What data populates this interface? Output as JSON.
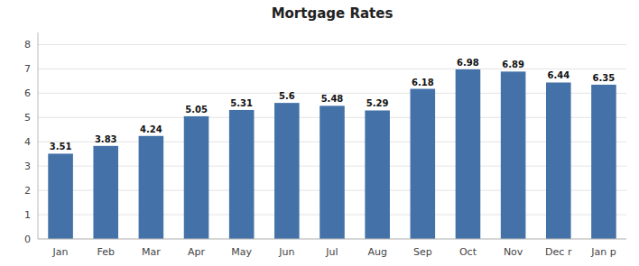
{
  "chart_data": {
    "type": "bar",
    "title": "Mortgage Rates",
    "categories": [
      "Jan",
      "Feb",
      "Mar",
      "Apr",
      "May",
      "Jun",
      "Jul",
      "Aug",
      "Sep",
      "Oct",
      "Nov",
      "Dec r",
      "Jan p"
    ],
    "values": [
      3.51,
      3.83,
      4.24,
      5.05,
      5.31,
      5.6,
      5.48,
      5.29,
      6.18,
      6.98,
      6.89,
      6.44,
      6.35
    ],
    "color": "#4472a8",
    "ylim": [
      0,
      8.5
    ],
    "yticks": [
      0,
      1,
      2,
      3,
      4,
      5,
      6,
      7,
      8
    ],
    "grid": true,
    "data_labels": true
  }
}
